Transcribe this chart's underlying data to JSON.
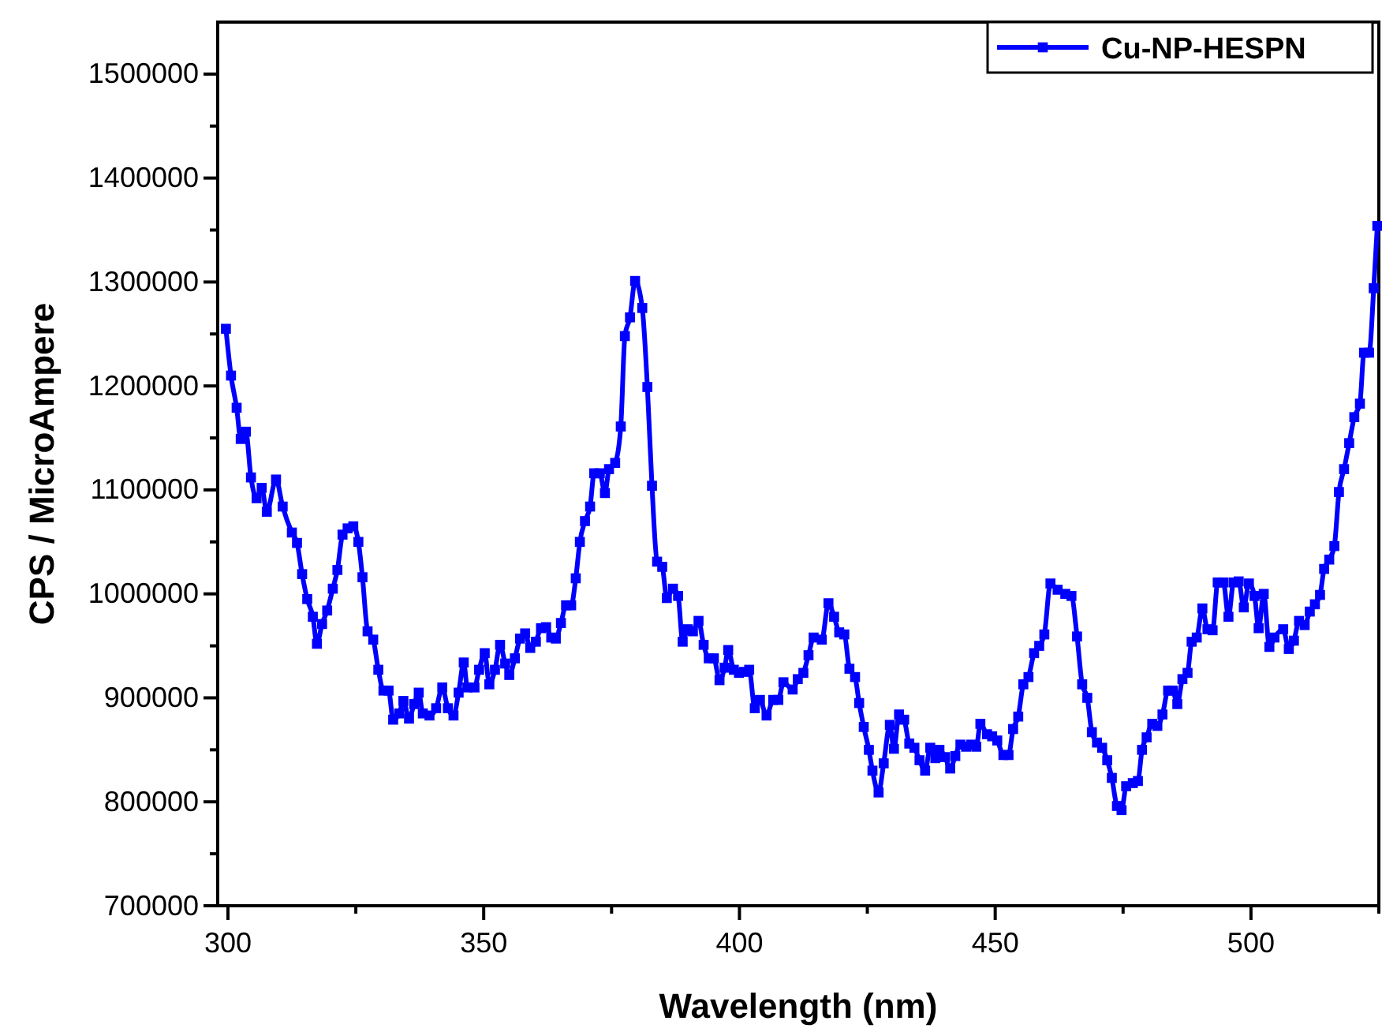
{
  "chart_data": {
    "type": "line",
    "xlabel": "Wavelength (nm)",
    "ylabel": "CPS / MicroAmpere",
    "xlim": [
      298,
      525
    ],
    "ylim": [
      700000,
      1550000
    ],
    "xticks": [
      300,
      {
        "value": 325,
        "label": null
      },
      350,
      {
        "value": 375,
        "label": null
      },
      400,
      {
        "value": 425,
        "label": null
      },
      450,
      {
        "value": 475,
        "label": null
      },
      500,
      {
        "value": 525,
        "label": null
      }
    ],
    "yticks": [
      700000,
      {
        "value": 750000,
        "label": null
      },
      800000,
      {
        "value": 850000,
        "label": null
      },
      900000,
      {
        "value": 950000,
        "label": null
      },
      1000000,
      {
        "value": 1050000,
        "label": null
      },
      1100000,
      {
        "value": 1150000,
        "label": null
      },
      1200000,
      {
        "value": 1250000,
        "label": null
      },
      1300000,
      {
        "value": 1350000,
        "label": null
      },
      1400000,
      {
        "value": 1450000,
        "label": null
      },
      1500000
    ],
    "grid": false,
    "legend": "top right",
    "marker": "square",
    "line_style": "solid",
    "x": [
      299.6,
      300.6,
      301.7,
      302.5,
      303.5,
      304.5,
      305.6,
      306.6,
      307.6,
      309.4,
      310.7,
      312.5,
      313.5,
      314.5,
      315.5,
      316.6,
      317.4,
      318.4,
      319.4,
      320.5,
      321.4,
      322.4,
      323.4,
      324.5,
      325.5,
      326.3,
      327.3,
      328.4,
      329.4,
      330.4,
      331.4,
      332.3,
      333.5,
      334.3,
      335.4,
      336.4,
      337.3,
      338.1,
      339.4,
      340.7,
      341.9,
      343.0,
      344.1,
      345.1,
      346.1,
      346.8,
      348.2,
      349.1,
      350.2,
      351.1,
      352.2,
      353.2,
      354.2,
      355.0,
      356.1,
      357.1,
      358.1,
      359.1,
      360.2,
      361.2,
      362.2,
      363.2,
      364.1,
      365.1,
      366.1,
      367.1,
      368.0,
      368.8,
      369.8,
      370.8,
      371.6,
      372.7,
      373.7,
      374.5,
      375.7,
      376.8,
      377.6,
      378.6,
      379.6,
      381.0,
      382.0,
      382.9,
      383.9,
      384.9,
      385.8,
      387.0,
      388.0,
      388.9,
      389.9,
      390.9,
      392.0,
      393.0,
      394.0,
      395.0,
      396.1,
      397.1,
      397.8,
      398.9,
      399.9,
      400.9,
      401.9,
      403.0,
      404.0,
      405.3,
      406.6,
      407.6,
      408.6,
      410.4,
      411.4,
      412.5,
      413.5,
      414.5,
      416.1,
      417.4,
      418.5,
      419.5,
      420.5,
      421.5,
      422.6,
      423.4,
      424.3,
      425.3,
      426.0,
      427.2,
      428.2,
      429.4,
      430.2,
      431.2,
      432.2,
      433.2,
      434.2,
      435.2,
      436.3,
      437.3,
      438.3,
      439.1,
      440.2,
      441.2,
      442.2,
      443.2,
      444.3,
      445.3,
      446.3,
      447.1,
      448.4,
      449.4,
      450.4,
      451.6,
      452.6,
      453.5,
      454.5,
      455.5,
      456.5,
      457.6,
      458.6,
      459.6,
      460.8,
      462.2,
      463.7,
      464.9,
      466.0,
      467.0,
      468.0,
      468.9,
      469.9,
      470.9,
      471.9,
      472.8,
      473.8,
      474.7,
      475.6,
      476.9,
      477.9,
      478.7,
      479.6,
      480.7,
      481.7,
      482.7,
      483.8,
      484.7,
      485.6,
      486.6,
      487.6,
      488.4,
      489.4,
      490.5,
      491.5,
      492.5,
      493.5,
      494.6,
      495.6,
      496.6,
      497.6,
      498.6,
      499.6,
      500.7,
      501.5,
      502.5,
      503.6,
      504.6,
      506.3,
      507.4,
      508.4,
      509.4,
      510.5,
      511.5,
      512.5,
      513.5,
      514.3,
      515.3,
      516.3,
      517.2,
      518.2,
      519.2,
      520.2,
      521.3,
      522.1,
      523.1,
      524.0,
      524.7
    ],
    "series": [
      {
        "name": "Cu-NP-HESPN",
        "color": "#0000ff",
        "values": [
          1255000,
          1210000,
          1179000,
          1149000,
          1156000,
          1112000,
          1092000,
          1102000,
          1079000,
          1110000,
          1084000,
          1059000,
          1049000,
          1019000,
          995000,
          978000,
          952000,
          971000,
          984000,
          1005000,
          1023000,
          1057000,
          1063000,
          1065000,
          1050000,
          1016000,
          964000,
          956000,
          927000,
          907000,
          907000,
          879000,
          885000,
          897000,
          880000,
          894000,
          905000,
          885000,
          883000,
          890000,
          910000,
          890000,
          883000,
          905000,
          934000,
          910000,
          910000,
          927000,
          943000,
          913000,
          927000,
          951000,
          933000,
          922000,
          938000,
          957000,
          962000,
          948000,
          954000,
          967000,
          968000,
          958000,
          957000,
          972000,
          989000,
          989000,
          1015000,
          1050000,
          1070000,
          1084000,
          1116000,
          1116000,
          1097000,
          1120000,
          1126000,
          1161000,
          1248000,
          1266000,
          1301000,
          1275000,
          1199000,
          1104000,
          1031000,
          1026000,
          996000,
          1005000,
          998000,
          954000,
          966000,
          964000,
          974000,
          951000,
          938000,
          938000,
          917000,
          929000,
          946000,
          927000,
          924000,
          925000,
          927000,
          890000,
          898000,
          883000,
          898000,
          898000,
          915000,
          908000,
          918000,
          924000,
          941000,
          958000,
          956000,
          991000,
          978000,
          963000,
          961000,
          928000,
          920000,
          895000,
          872000,
          850000,
          830000,
          809000,
          837000,
          874000,
          851000,
          884000,
          879000,
          856000,
          852000,
          840000,
          830000,
          852000,
          842000,
          850000,
          843000,
          832000,
          844000,
          855000,
          853000,
          855000,
          853000,
          875000,
          865000,
          863000,
          859000,
          845000,
          845000,
          870000,
          882000,
          913000,
          920000,
          943000,
          950000,
          961000,
          1010000,
          1004000,
          1000000,
          998000,
          959000,
          913000,
          900000,
          867000,
          857000,
          852000,
          840000,
          823000,
          796000,
          792000,
          815000,
          818000,
          820000,
          850000,
          862000,
          875000,
          873000,
          884000,
          907000,
          907000,
          894000,
          918000,
          924000,
          954000,
          958000,
          986000,
          966000,
          965000,
          1011000,
          1011000,
          978000,
          1011000,
          1012000,
          987000,
          1010000,
          998000,
          967000,
          1000000,
          949000,
          958000,
          966000,
          947000,
          955000,
          974000,
          970000,
          983000,
          990000,
          999000,
          1024000,
          1033000,
          1046000,
          1098000,
          1120000,
          1145000,
          1170000,
          1183000,
          1232000,
          1232000,
          1294000,
          1354000
        ]
      }
    ]
  }
}
